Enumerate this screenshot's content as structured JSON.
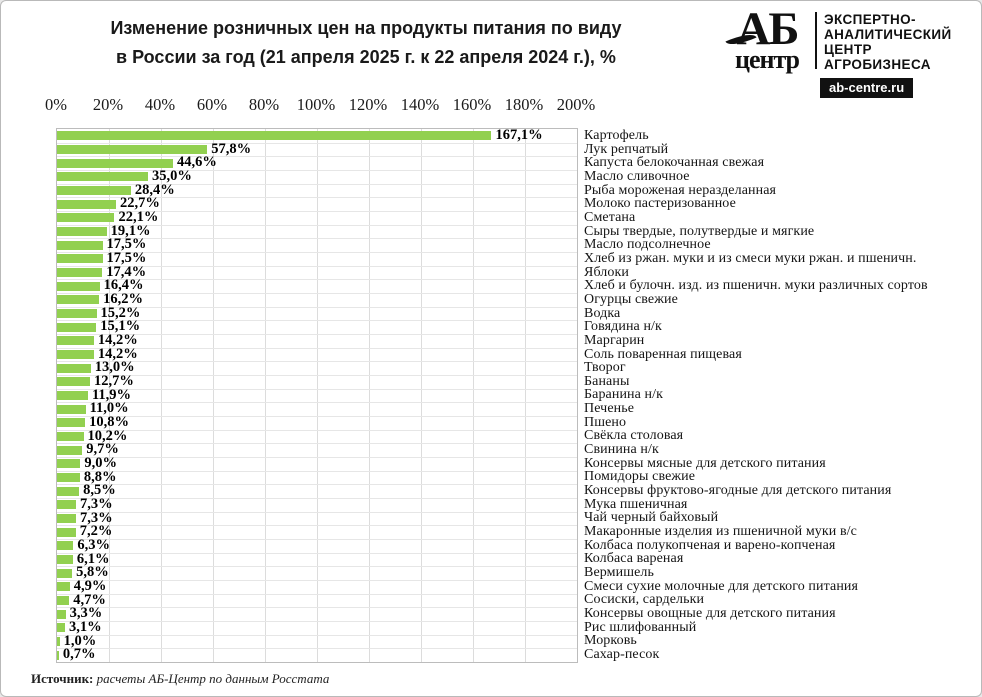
{
  "header": {
    "title_line1": "Изменение розничных цен на продукты питания по виду",
    "title_line2": "в России за год (21 апреля 2025 г. к 22 апреля 2024 г.), %",
    "logo": {
      "ab": "АБ",
      "centre": "центр",
      "tagline_lines": [
        "ЭКСПЕРТНО-",
        "АНАЛИТИЧЕСКИЙ",
        "ЦЕНТР",
        "АГРОБИЗНЕСА"
      ],
      "site": "ab-centre.ru"
    }
  },
  "chart_data": {
    "type": "bar",
    "orientation": "horizontal",
    "title": "Изменение розничных цен на продукты питания по виду в России за год (21 апреля 2025 г. к 22 апреля 2024 г.), %",
    "xlim": [
      0,
      200
    ],
    "x_ticks": [
      "0%",
      "20%",
      "40%",
      "60%",
      "80%",
      "100%",
      "120%",
      "140%",
      "160%",
      "180%",
      "200%"
    ],
    "grid": true,
    "bar_color": "#92d050",
    "categories": [
      "Картофель",
      "Лук репчатый",
      "Капуста белокочанная свежая",
      "Масло сливочное",
      "Рыба мороженая неразделанная",
      "Молоко пастеризованное",
      "Сметана",
      "Сыры твердые, полутвердые и мягкие",
      "Масло подсолнечное",
      "Хлеб из ржан. муки и из смеси муки ржан. и пшеничн.",
      "Яблоки",
      "Хлеб и булочн. изд. из пшеничн. муки различных сортов",
      "Огурцы свежие",
      "Водка",
      "Говядина н/к",
      "Маргарин",
      "Соль поваренная пищевая",
      "Творог",
      "Бананы",
      "Баранина н/к",
      "Печенье",
      "Пшено",
      "Свёкла столовая",
      "Свинина н/к",
      "Консервы мясные для детского питания",
      "Помидоры свежие",
      "Консервы фруктово-ягодные для детского питания",
      "Мука пшеничная",
      "Чай черный байховый",
      "Макаронные изделия из пшеничной муки в/с",
      "Колбаса полукопченая и варено-копченая",
      "Колбаса вареная",
      "Вермишель",
      "Смеси сухие молочные для детского питания",
      "Сосиски, сардельки",
      "Консервы овощные для детского питания",
      "Рис шлифованный",
      "Морковь",
      "Сахар-песок"
    ],
    "values": [
      167.1,
      57.8,
      44.6,
      35.0,
      28.4,
      22.7,
      22.1,
      19.1,
      17.5,
      17.5,
      17.4,
      16.4,
      16.2,
      15.2,
      15.1,
      14.2,
      14.2,
      13.0,
      12.7,
      11.9,
      11.0,
      10.8,
      10.2,
      9.7,
      9.0,
      8.8,
      8.5,
      7.3,
      7.3,
      7.2,
      6.3,
      6.1,
      5.8,
      4.9,
      4.7,
      3.3,
      3.1,
      1.0,
      0.7
    ],
    "value_labels": [
      "167,1%",
      "57,8%",
      "44,6%",
      "35,0%",
      "28,4%",
      "22,7%",
      "22,1%",
      "19,1%",
      "17,5%",
      "17,5%",
      "17,4%",
      "16,4%",
      "16,2%",
      "15,2%",
      "15,1%",
      "14,2%",
      "14,2%",
      "13,0%",
      "12,7%",
      "11,9%",
      "11,0%",
      "10,8%",
      "10,2%",
      "9,7%",
      "9,0%",
      "8,8%",
      "8,5%",
      "7,3%",
      "7,3%",
      "7,2%",
      "6,3%",
      "6,1%",
      "5,8%",
      "4,9%",
      "4,7%",
      "3,3%",
      "3,1%",
      "1,0%",
      "0,7%"
    ]
  },
  "footer": {
    "source_label": "Источник:",
    "source_text": " расчеты АБ-Центр по данным Росстата"
  }
}
